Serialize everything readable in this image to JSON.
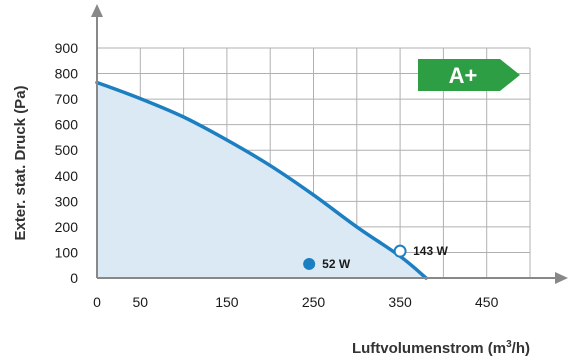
{
  "chart_data": {
    "type": "area",
    "title": "",
    "xlabel": "Luftvolumenstrom (m³/h)",
    "xlabel_parts": {
      "before": "Luftvolumenstrom (m",
      "sup": "3",
      "after": "/h)"
    },
    "ylabel": "Exter. stat. Druck (Pa)",
    "xlim": [
      0,
      500
    ],
    "ylim": [
      0,
      900
    ],
    "x_ticks": [
      0,
      50,
      150,
      250,
      350,
      450
    ],
    "x_tick_labels": [
      "0",
      "50",
      "150",
      "250",
      "350",
      "450"
    ],
    "y_ticks": [
      0,
      100,
      200,
      300,
      400,
      500,
      600,
      700,
      800,
      900
    ],
    "y_tick_labels": [
      "0",
      "100",
      "200",
      "300",
      "400",
      "500",
      "600",
      "700",
      "800",
      "900"
    ],
    "grid": true,
    "series": [
      {
        "x": [
          0,
          50,
          100,
          150,
          200,
          250,
          300,
          350,
          380
        ],
        "y": [
          765,
          702,
          630,
          540,
          440,
          325,
          200,
          85,
          0
        ]
      }
    ],
    "points": [
      {
        "x": 245,
        "y": 55,
        "label": "52 W",
        "style": "filled"
      },
      {
        "x": 350,
        "y": 105,
        "label": "143 W",
        "style": "open"
      }
    ],
    "badge": {
      "text": "A+",
      "color": "#2e9e44"
    },
    "colors": {
      "line": "#1b7fc2",
      "fill": "#dbe9f5",
      "grid": "#b0b0b0",
      "axis": "#888888"
    }
  }
}
